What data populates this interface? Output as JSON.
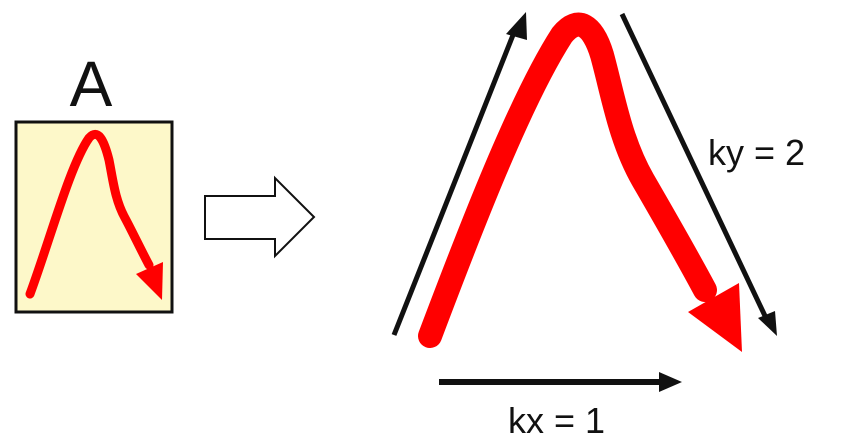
{
  "panel_label": "A",
  "kx_label": "kx = 1",
  "ky_label": "ky = 2",
  "colors": {
    "stroke_red": "#ff0000",
    "panel_fill": "#fdf8c9",
    "outline": "#111111",
    "arrow_fill": "#ffffff"
  },
  "icons": [
    "transform-arrow-icon",
    "stroke-arrowhead-icon",
    "direction-arrow-icon"
  ]
}
